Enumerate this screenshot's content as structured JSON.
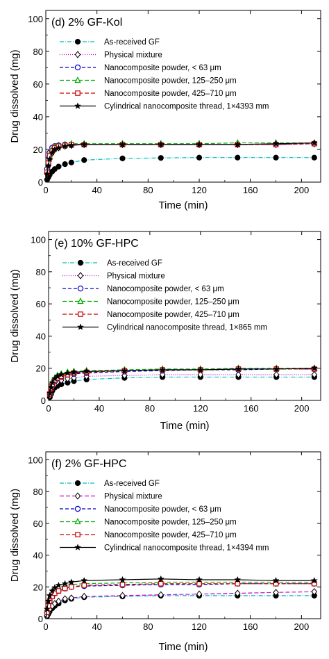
{
  "chart_data": [
    {
      "type": "line",
      "panel_label": "(d) 2% GF-Kol",
      "xlabel": "Time (min)",
      "ylabel": "Drug dissolved (mg)",
      "xlim": [
        0,
        215
      ],
      "ylim": [
        0,
        105
      ],
      "xticks": [
        "0",
        "40",
        "80",
        "120",
        "160",
        "200"
      ],
      "yticks": [
        "0",
        "20",
        "40",
        "60",
        "80",
        "100"
      ],
      "grid": false,
      "legend_position": "top-left",
      "x": [
        0,
        1,
        2,
        3,
        5,
        7,
        10,
        15,
        20,
        30,
        60,
        90,
        120,
        150,
        180,
        210
      ],
      "series": [
        {
          "name": "As-received GF",
          "color": "#00bfbf",
          "dash": "6,2,1,2",
          "marker": "circle-filled",
          "values": [
            0,
            1.5,
            3,
            4.5,
            6.5,
            8,
            9.5,
            11,
            12,
            13.5,
            14.5,
            14.8,
            15,
            15,
            15,
            15
          ]
        },
        {
          "name": "Physical mixture",
          "color": "#cc00cc",
          "dash": "1,2",
          "marker": "diamond",
          "values": [
            0,
            5,
            10,
            14,
            18,
            20,
            21,
            22,
            22.5,
            23,
            23,
            23,
            23,
            23,
            23,
            23.5
          ]
        },
        {
          "name": "Nanocomposite powder, < 63 μm",
          "color": "#0000cc",
          "dash": "5,3",
          "marker": "circle-half",
          "values": [
            0,
            8,
            14,
            18,
            21,
            22,
            22.5,
            23,
            23,
            23,
            23,
            23,
            23,
            23,
            23,
            23.5
          ]
        },
        {
          "name": "Nanocomposite powder, 125–250 μm",
          "color": "#00aa00",
          "dash": "6,3",
          "marker": "triangle",
          "values": [
            0,
            7,
            13,
            17,
            20,
            21.5,
            22.5,
            23,
            23.5,
            23.5,
            23.5,
            23.5,
            23.5,
            24,
            24,
            24
          ]
        },
        {
          "name": "Nanocomposite powder, 425–710 μm",
          "color": "#cc0000",
          "dash": "6,3",
          "marker": "square",
          "values": [
            0,
            6,
            12,
            16,
            19,
            21,
            22,
            22.5,
            23,
            23,
            23,
            23,
            23,
            23,
            23,
            23.5
          ]
        },
        {
          "name": "Cylindrical nanocomposite thread, 1×4393 mm",
          "color": "#000000",
          "dash": "",
          "marker": "star",
          "values": [
            0,
            5,
            10,
            14,
            18,
            20,
            21,
            22,
            22.5,
            23,
            23,
            23,
            23,
            23,
            23.5,
            24
          ]
        }
      ]
    },
    {
      "type": "line",
      "panel_label": "(e) 10% GF-HPC",
      "xlabel": "Time (min)",
      "ylabel": "Drug dissolved (mg)",
      "xlim": [
        0,
        215
      ],
      "ylim": [
        0,
        105
      ],
      "xticks": [
        "0",
        "40",
        "80",
        "120",
        "160",
        "200"
      ],
      "yticks": [
        "0",
        "20",
        "40",
        "60",
        "80",
        "100"
      ],
      "grid": false,
      "legend_position": "top-left",
      "x": [
        0,
        1,
        2,
        3,
        5,
        7,
        10,
        15,
        20,
        30,
        60,
        90,
        120,
        150,
        180,
        210
      ],
      "series": [
        {
          "name": "As-received GF",
          "color": "#00bfbf",
          "dash": "6,2,1,2",
          "marker": "circle-filled",
          "values": [
            0,
            2,
            4,
            6,
            8,
            9,
            10,
            11,
            12,
            13,
            14,
            14.5,
            14.5,
            14.5,
            14.5,
            14.5
          ]
        },
        {
          "name": "Physical mixture",
          "color": "#cc00cc",
          "dash": "1,2",
          "marker": "diamond",
          "values": [
            0,
            3,
            6,
            8,
            10,
            11.5,
            12.5,
            13.5,
            14,
            15,
            15.5,
            16,
            16,
            16,
            16,
            16
          ]
        },
        {
          "name": "Nanocomposite powder, < 63 μm",
          "color": "#0000cc",
          "dash": "5,3",
          "marker": "circle-half",
          "values": [
            0,
            4,
            7,
            9.5,
            12,
            13.5,
            14.5,
            16,
            16.5,
            17,
            18,
            18.5,
            19,
            19,
            19.5,
            19.5
          ]
        },
        {
          "name": "Nanocomposite powder, 125–250 μm",
          "color": "#00aa00",
          "dash": "6,3",
          "marker": "triangle",
          "values": [
            0,
            5,
            9,
            12,
            14,
            15.5,
            16.5,
            17.5,
            18,
            18.5,
            19,
            19.5,
            19.5,
            20,
            20,
            20
          ]
        },
        {
          "name": "Nanocomposite powder, 425–710 μm",
          "color": "#cc0000",
          "dash": "6,3",
          "marker": "square",
          "values": [
            0,
            4,
            7.5,
            10,
            12.5,
            14,
            15,
            16,
            17,
            17.5,
            18.5,
            19,
            19,
            19.5,
            19.5,
            19.5
          ]
        },
        {
          "name": "Cylindrical nanocomposite thread, 1×865 mm",
          "color": "#000000",
          "dash": "",
          "marker": "star",
          "values": [
            0,
            4.5,
            8,
            11,
            13.5,
            15,
            16,
            17,
            17.5,
            18,
            18.5,
            19,
            19,
            19.5,
            19.5,
            20
          ]
        }
      ]
    },
    {
      "type": "line",
      "panel_label": "(f) 2% GF-HPC",
      "xlabel": "Time (min)",
      "ylabel": "Drug dissolved (mg)",
      "xlim": [
        0,
        215
      ],
      "ylim": [
        0,
        105
      ],
      "xticks": [
        "0",
        "40",
        "80",
        "120",
        "160",
        "200"
      ],
      "yticks": [
        "0",
        "20",
        "40",
        "60",
        "80",
        "100"
      ],
      "grid": false,
      "legend_position": "top-left",
      "x": [
        0,
        1,
        2,
        3,
        5,
        7,
        10,
        15,
        20,
        30,
        60,
        90,
        120,
        150,
        180,
        210
      ],
      "series": [
        {
          "name": "As-received GF",
          "color": "#00bfbf",
          "dash": "6,2,1,2",
          "marker": "circle-filled",
          "values": [
            0,
            1.5,
            3,
            4.5,
            6.5,
            8,
            9.5,
            11.5,
            12.5,
            13.5,
            14,
            14.5,
            14.5,
            14.5,
            14.5,
            14.5
          ]
        },
        {
          "name": "Physical mixture",
          "color": "#cc00cc",
          "dash": "6,3",
          "marker": "diamond",
          "values": [
            0,
            2,
            4,
            6,
            8,
            9.5,
            11,
            12.5,
            13,
            14,
            14.5,
            15,
            15.5,
            16,
            16.5,
            17
          ]
        },
        {
          "name": "Nanocomposite powder, < 63 μm",
          "color": "#0000cc",
          "dash": "5,3",
          "marker": "circle-half",
          "values": [
            0,
            4,
            8,
            11,
            14,
            16,
            17.5,
            19,
            20,
            20.5,
            21,
            21.5,
            21.5,
            22,
            22,
            22
          ]
        },
        {
          "name": "Nanocomposite powder, 125–250 μm",
          "color": "#00aa00",
          "dash": "6,3",
          "marker": "triangle",
          "values": [
            0,
            5,
            9.5,
            13,
            16,
            18,
            19.5,
            21,
            21.5,
            22,
            22.5,
            23,
            23,
            23,
            23,
            23
          ]
        },
        {
          "name": "Nanocomposite powder, 425–710 μm",
          "color": "#cc0000",
          "dash": "6,3",
          "marker": "square",
          "values": [
            0,
            4,
            8,
            11,
            14,
            16,
            17.5,
            19,
            20,
            21,
            21.5,
            22,
            22,
            22,
            22,
            22
          ]
        },
        {
          "name": "Cylindrical nanocomposite thread, 1×4394 mm",
          "color": "#000000",
          "dash": "",
          "marker": "star",
          "values": [
            0,
            6,
            11,
            14.5,
            17.5,
            19.5,
            21,
            22,
            23,
            24,
            24.5,
            25,
            24.5,
            24.5,
            24,
            24
          ]
        }
      ]
    }
  ]
}
